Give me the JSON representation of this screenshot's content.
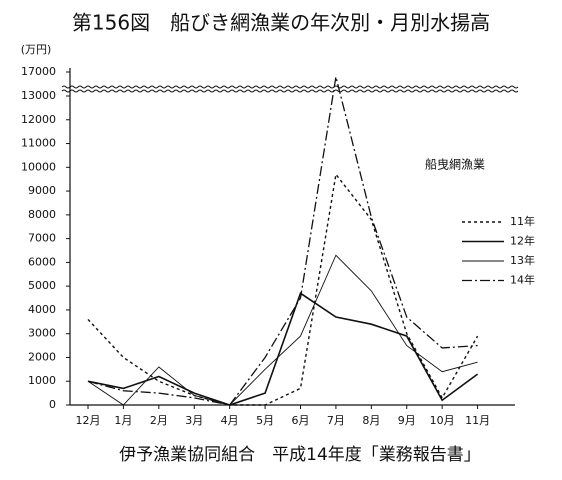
{
  "chart_data": {
    "type": "line",
    "title": "第156図　船びき網漁業の年次別・月別水揚高",
    "y_unit": "(万円)",
    "subtitle": "船曳網漁業",
    "source": "伊予漁業協同組合　平成14年度「業務報告書」",
    "categories": [
      "12月",
      "1月",
      "2月",
      "3月",
      "4月",
      "5月",
      "6月",
      "7月",
      "8月",
      "9月",
      "10月",
      "11月"
    ],
    "ylim": [
      0,
      17000
    ],
    "ybreak": [
      13000,
      16000
    ],
    "yticks": [
      0,
      1000,
      2000,
      3000,
      4000,
      5000,
      6000,
      7000,
      8000,
      9000,
      10000,
      11000,
      12000,
      13000,
      17000
    ],
    "series": [
      {
        "name": "11年",
        "color": "#111",
        "dash": "3 3",
        "width": 1.4,
        "values": [
          3600,
          2000,
          1000,
          400,
          0,
          0,
          700,
          9700,
          7800,
          3000,
          300,
          2900
        ]
      },
      {
        "name": "12年",
        "color": "#111",
        "dash": "none",
        "width": 1.6,
        "values": [
          1000,
          700,
          1200,
          500,
          0,
          500,
          4700,
          3700,
          3400,
          2900,
          200,
          1300
        ]
      },
      {
        "name": "13年",
        "color": "#111",
        "dash": "none",
        "width": 0.9,
        "values": [
          1000,
          0,
          1600,
          400,
          0,
          1500,
          2900,
          6300,
          4800,
          2500,
          1400,
          1800
        ]
      },
      {
        "name": "14年",
        "color": "#111",
        "dash": "10 3 2 3",
        "width": 1.3,
        "values": [
          1000,
          600,
          500,
          300,
          0,
          2000,
          4500,
          16800,
          7900,
          3700,
          2400,
          2500
        ]
      }
    ]
  }
}
